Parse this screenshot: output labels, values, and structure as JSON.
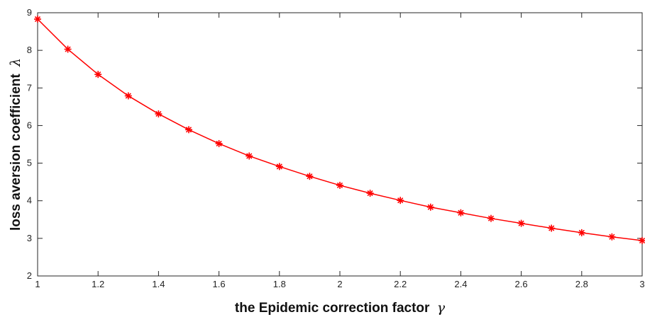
{
  "chart_data": {
    "type": "line",
    "title": "",
    "xlabel": "the Epidemic correction factor",
    "xlabel_symbol": "γ",
    "ylabel": "loss aversion coefficient",
    "ylabel_symbol": "λ",
    "xlim": [
      1,
      3
    ],
    "ylim": [
      2,
      9
    ],
    "xticks": [
      1,
      1.2,
      1.4,
      1.6,
      1.8,
      2,
      2.2,
      2.4,
      2.6,
      2.8,
      3
    ],
    "xtick_labels": [
      "1",
      "1.2",
      "1.4",
      "1.6",
      "1.8",
      "2",
      "2.2",
      "2.4",
      "2.6",
      "2.8",
      "3"
    ],
    "yticks": [
      2,
      3,
      4,
      5,
      6,
      7,
      8,
      9
    ],
    "ytick_labels": [
      "2",
      "3",
      "4",
      "5",
      "6",
      "7",
      "8",
      "9"
    ],
    "grid": false,
    "series": [
      {
        "color": "#ff0000",
        "marker": "asterisk",
        "x": [
          1,
          1.1,
          1.2,
          1.3,
          1.4,
          1.5,
          1.6,
          1.7,
          1.8,
          1.9,
          2,
          2.1,
          2.2,
          2.3,
          2.4,
          2.5,
          2.6,
          2.7,
          2.8,
          2.9,
          3
        ],
        "y": [
          8.83,
          8.03,
          7.36,
          6.79,
          6.31,
          5.89,
          5.52,
          5.19,
          4.91,
          4.65,
          4.41,
          4.2,
          4.01,
          3.83,
          3.68,
          3.53,
          3.4,
          3.27,
          3.15,
          3.04,
          2.94
        ]
      }
    ]
  }
}
